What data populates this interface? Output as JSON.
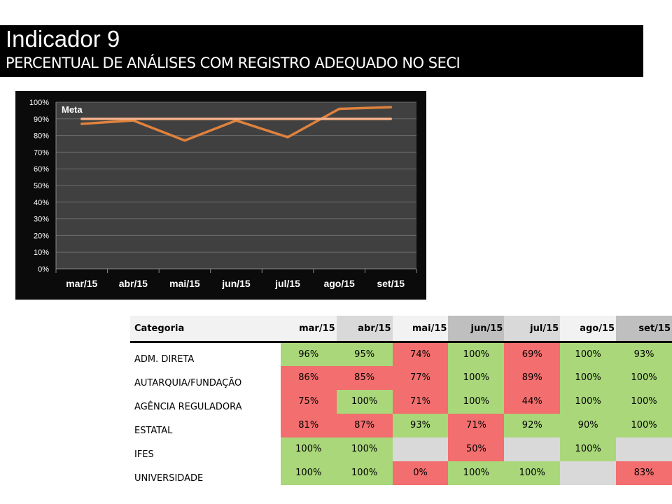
{
  "header": {
    "title": "Indicador 9",
    "subtitle": "PERCENTUAL DE ANÁLISES COM REGISTRO ADEQUADO NO SECI"
  },
  "chart_data": {
    "type": "line",
    "categories": [
      "mar/15",
      "abr/15",
      "mai/15",
      "jun/15",
      "jul/15",
      "ago/15",
      "set/15"
    ],
    "series": [
      {
        "name": "",
        "color": "#e0823d",
        "values": [
          87,
          89,
          77,
          89,
          79,
          96,
          97
        ]
      },
      {
        "name": "Meta",
        "color": "#f7b089",
        "values": [
          90,
          90,
          90,
          90,
          90,
          90,
          90
        ]
      }
    ],
    "y_ticks": [
      "0%",
      "10%",
      "20%",
      "30%",
      "40%",
      "50%",
      "60%",
      "70%",
      "80%",
      "90%",
      "100%"
    ],
    "ylim": [
      0,
      100
    ],
    "annotation": "Meta",
    "grid": true,
    "background": "#0b0b0b",
    "plot_background": "#404040"
  },
  "table": {
    "header_label": "Categoria",
    "months": [
      "mar/15",
      "abr/15",
      "mai/15",
      "jun/15",
      "jul/15",
      "ago/15",
      "set/15"
    ],
    "header_colors": [
      "#f2f2f2",
      "#d9d9d9",
      "#f2f2f2",
      "#bfbfbf",
      "#d9d9d9",
      "#f2f2f2",
      "#bfbfbf"
    ],
    "status_colors": {
      "green": "#a9d77a",
      "red": "#f36e6e",
      "empty": "#d9d9d9"
    },
    "rows": [
      {
        "category": "ADM. DIRETA",
        "values": [
          "96%",
          "95%",
          "74%",
          "100%",
          "69%",
          "100%",
          "93%"
        ],
        "status": [
          "g",
          "g",
          "r",
          "g",
          "r",
          "g",
          "g"
        ]
      },
      {
        "category": "AUTARQUIA/FUNDAÇÃO",
        "values": [
          "86%",
          "85%",
          "77%",
          "100%",
          "89%",
          "100%",
          "100%"
        ],
        "status": [
          "r",
          "r",
          "r",
          "g",
          "r",
          "g",
          "g"
        ]
      },
      {
        "category": "AGÊNCIA REGULADORA",
        "values": [
          "75%",
          "100%",
          "71%",
          "100%",
          "44%",
          "100%",
          "100%"
        ],
        "status": [
          "r",
          "g",
          "r",
          "g",
          "r",
          "g",
          "g"
        ]
      },
      {
        "category": "ESTATAL",
        "values": [
          "81%",
          "87%",
          "93%",
          "71%",
          "92%",
          "90%",
          "100%"
        ],
        "status": [
          "r",
          "r",
          "g",
          "r",
          "g",
          "g",
          "g"
        ]
      },
      {
        "category": "IFES",
        "values": [
          "100%",
          "100%",
          "",
          "50%",
          "",
          "100%",
          ""
        ],
        "status": [
          "g",
          "g",
          "e",
          "r",
          "e",
          "g",
          "e"
        ]
      },
      {
        "category": "UNIVERSIDADE",
        "values": [
          "100%",
          "100%",
          "0%",
          "100%",
          "100%",
          "",
          "83%"
        ],
        "status": [
          "g",
          "g",
          "r",
          "g",
          "g",
          "e",
          "r"
        ]
      }
    ]
  }
}
